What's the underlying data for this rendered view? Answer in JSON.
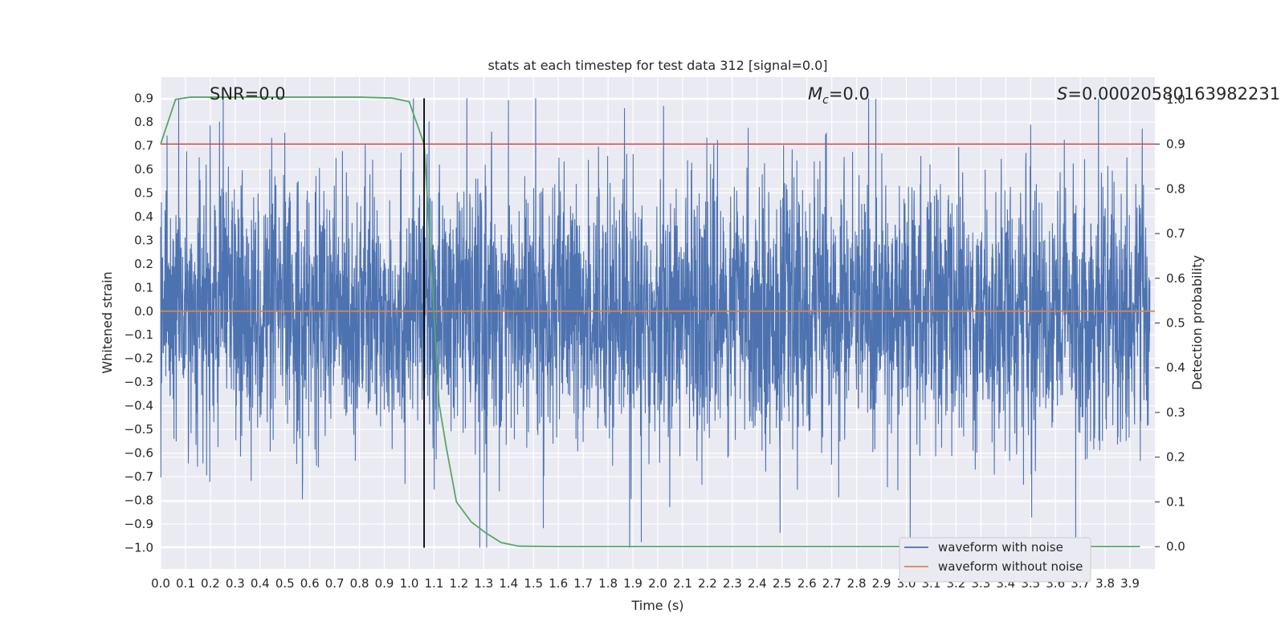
{
  "chart_data": {
    "type": "line",
    "title": "stats at each timestep for test data 312 [signal=0.0]",
    "xlabel": "Time (s)",
    "ylabel": "Whitened strain",
    "y2label": "Detection probability",
    "xlim": [
      0.0,
      4.0
    ],
    "ylim": [
      -1.09,
      0.99
    ],
    "y2lim": [
      -0.05,
      1.05
    ],
    "x_ticks": [
      "0.0",
      "0.1",
      "0.2",
      "0.3",
      "0.4",
      "0.5",
      "0.6",
      "0.7",
      "0.8",
      "0.9",
      "1.0",
      "1.1",
      "1.2",
      "1.3",
      "1.4",
      "1.5",
      "1.6",
      "1.7",
      "1.8",
      "1.9",
      "2.0",
      "2.1",
      "2.2",
      "2.3",
      "2.4",
      "2.5",
      "2.6",
      "2.7",
      "2.8",
      "2.9",
      "3.0",
      "3.1",
      "3.2",
      "3.3",
      "3.4",
      "3.5",
      "3.6",
      "3.7",
      "3.8",
      "3.9"
    ],
    "y_ticks": [
      "0.9",
      "0.8",
      "0.7",
      "0.6",
      "0.5",
      "0.4",
      "0.3",
      "0.2",
      "0.1",
      "0.0",
      "−0.1",
      "−0.2",
      "−0.3",
      "−0.4",
      "−0.5",
      "−0.6",
      "−0.7",
      "−0.8",
      "−0.9",
      "−1.0"
    ],
    "y2_ticks": [
      "1.0",
      "0.9",
      "0.8",
      "0.7",
      "0.6",
      "0.5",
      "0.4",
      "0.3",
      "0.2",
      "0.1",
      "0.0"
    ],
    "grid": true,
    "legend_position": "lower-right",
    "annotations": {
      "snr": "SNR=0.0",
      "mc": "=0.0",
      "mc_symbol": "M",
      "mc_sub": "c",
      "s": "=0.00020580163982231",
      "s_symbol": "S"
    },
    "series": [
      {
        "name": "waveform with noise",
        "color": "#4c72b0",
        "noise_amplitude": 0.9,
        "sample_count": 4000
      },
      {
        "name": "waveform without noise",
        "color": "#dd8452",
        "value": 0.0
      },
      {
        "color": "#55a868",
        "axis": "right",
        "x": [
          0.0,
          0.06,
          0.12,
          0.2,
          0.5,
          0.8,
          0.93,
          1.0,
          1.06,
          1.09,
          1.12,
          1.15,
          1.19,
          1.25,
          1.31,
          1.37,
          1.44,
          1.6,
          2.0,
          3.0,
          3.94
        ],
        "values": [
          0.9,
          1.0,
          1.005,
          1.005,
          1.005,
          1.005,
          1.003,
          0.995,
          0.9,
          0.62,
          0.32,
          0.22,
          0.1,
          0.055,
          0.03,
          0.009,
          0.001,
          0.0,
          0.0,
          0.0,
          0.0
        ]
      }
    ],
    "threshold": {
      "axis": "right",
      "value": 0.9,
      "color": "#c44e52"
    },
    "marker": {
      "x": 1.06,
      "y_from": -1.0,
      "y_to": 0.9,
      "color": "#000000"
    }
  }
}
